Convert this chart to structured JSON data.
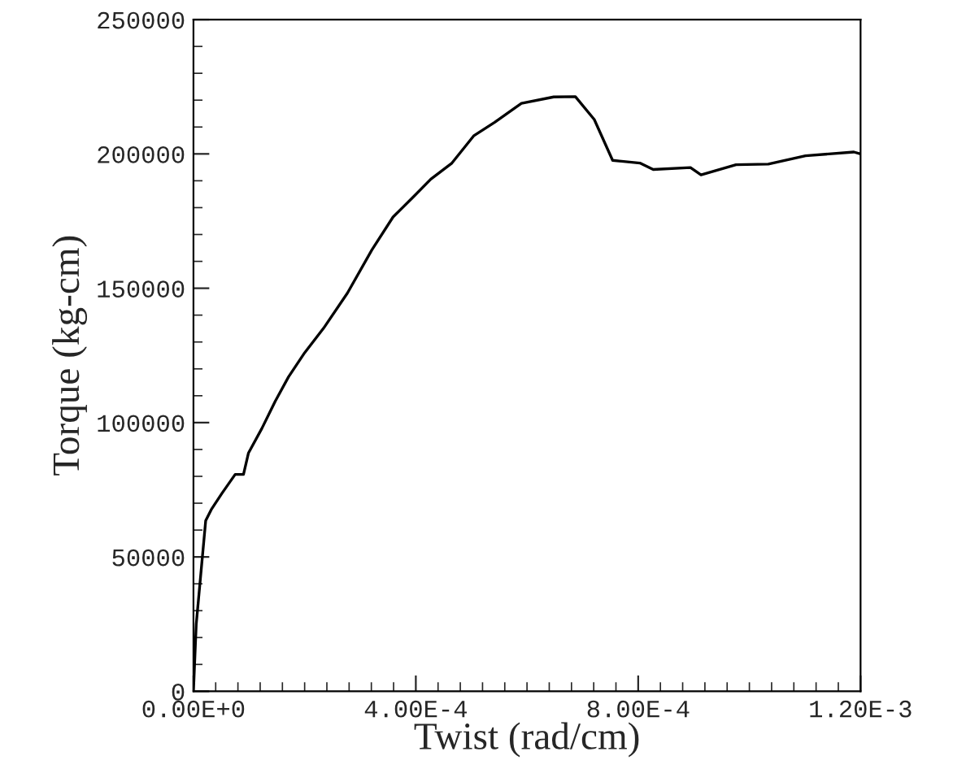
{
  "chart_data": {
    "type": "line",
    "xlabel": "Twist (rad/cm)",
    "ylabel": "Torque (kg-cm)",
    "x": [
      0,
      5e-06,
      2.2e-05,
      3.2e-05,
      5.1e-05,
      7.5e-05,
      9e-05,
      9.9e-05,
      0.000123,
      0.000147,
      0.000171,
      0.0002,
      0.000234,
      0.000277,
      0.000321,
      0.000359,
      0.000398,
      0.000427,
      0.000465,
      0.000504,
      0.000542,
      0.000576,
      0.00059,
      0.000648,
      0.000687,
      0.000721,
      0.000754,
      0.000803,
      0.000827,
      0.000894,
      0.000913,
      0.000976,
      0.001034,
      0.001101,
      0.001188,
      0.0012
    ],
    "series": [
      {
        "color": "#000000",
        "values": [
          0,
          25000,
          63500,
          67600,
          73600,
          80700,
          80700,
          88700,
          97800,
          107900,
          117000,
          126000,
          135100,
          148200,
          164300,
          176500,
          184500,
          190600,
          196600,
          206700,
          211800,
          216800,
          218800,
          221200,
          221300,
          212800,
          197600,
          196600,
          194200,
          194900,
          192200,
          196000,
          196200,
          199300,
          200700,
          200000
        ]
      }
    ],
    "xlim": [
      0,
      0.0012
    ],
    "ylim": [
      0,
      250000
    ],
    "xticks": [
      {
        "value": 0,
        "label": "0.00E+0"
      },
      {
        "value": 0.0004,
        "label": "4.00E-4"
      },
      {
        "value": 0.0008,
        "label": "8.00E-4"
      },
      {
        "value": 0.0012,
        "label": "1.20E-3"
      }
    ],
    "yticks": [
      0,
      50000,
      100000,
      150000,
      200000,
      250000
    ],
    "grid": false,
    "legend": false,
    "marker": "none",
    "line_style": "solid"
  }
}
